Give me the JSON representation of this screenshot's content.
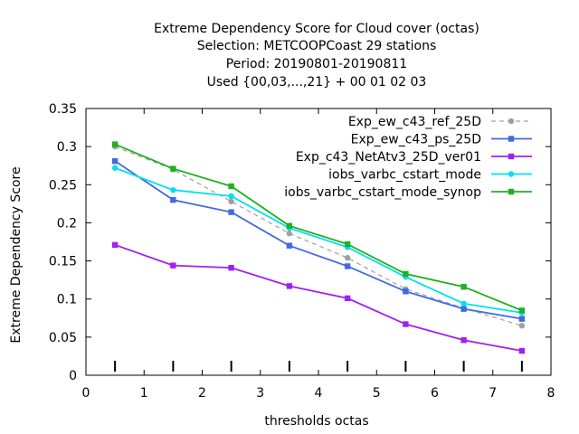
{
  "chart_data": {
    "type": "line",
    "title_lines": [
      "Extreme Dependency Score  for Cloud cover (octas)",
      "Selection: METCOOPCoast     29 stations",
      "Period: 20190801-20190811",
      "Used {00,03,...,21} + 00 01 02 03"
    ],
    "xlabel": "thresholds octas",
    "ylabel": "Extreme Dependency Score",
    "xlim": [
      0,
      8
    ],
    "ylim": [
      0,
      0.35
    ],
    "xticks": [
      "0",
      "1",
      "2",
      "3",
      "4",
      "5",
      "6",
      "7",
      "8"
    ],
    "yticks": [
      "0",
      "0.05",
      "0.1",
      "0.15",
      "0.2",
      "0.25",
      "0.3",
      "0.35"
    ],
    "grid": false,
    "legend_position": "top-right",
    "x": [
      0.5,
      1.5,
      2.5,
      3.5,
      4.5,
      5.5,
      6.5,
      7.5
    ],
    "series": [
      {
        "name": "Exp_ew_c43_ref_25D",
        "color": "#a0a0a0",
        "dashed": true,
        "marker": "circle",
        "values": [
          0.3,
          0.27,
          0.228,
          0.186,
          0.154,
          0.113,
          0.088,
          0.065
        ]
      },
      {
        "name": "Exp_ew_c43_ps_25D",
        "color": "#4169e1",
        "dashed": false,
        "marker": "square",
        "values": [
          0.281,
          0.23,
          0.214,
          0.17,
          0.143,
          0.11,
          0.087,
          0.074
        ]
      },
      {
        "name": "Exp_c43_NetAtv3_25D_ver01",
        "color": "#a020f0",
        "dashed": false,
        "marker": "square",
        "values": [
          0.171,
          0.144,
          0.141,
          0.117,
          0.101,
          0.067,
          0.046,
          0.032
        ]
      },
      {
        "name": "iobs_varbc_cstart_mode",
        "color": "#00e0f0",
        "dashed": false,
        "marker": "circle",
        "values": [
          0.272,
          0.243,
          0.235,
          0.193,
          0.168,
          0.129,
          0.094,
          0.082
        ]
      },
      {
        "name": "iobs_varbc_cstart_mode_synop",
        "color": "#20b020",
        "dashed": false,
        "marker": "square",
        "values": [
          0.303,
          0.271,
          0.248,
          0.196,
          0.172,
          0.133,
          0.116,
          0.085
        ]
      }
    ]
  }
}
